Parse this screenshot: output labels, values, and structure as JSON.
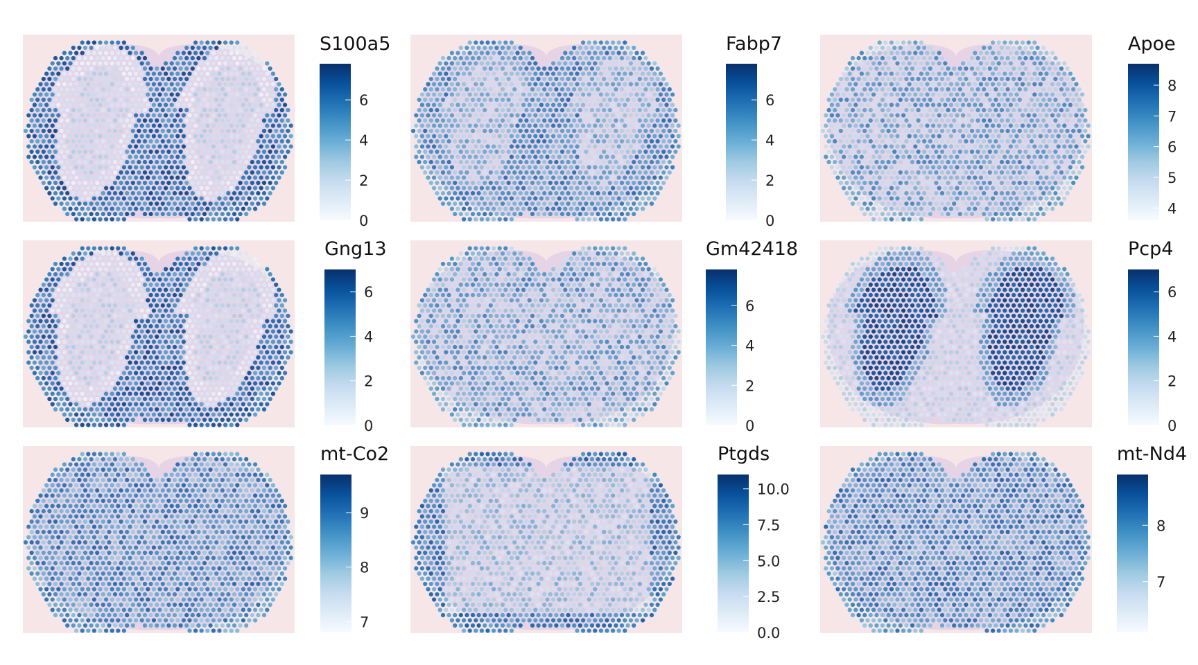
{
  "figure": {
    "background": "#ffffff",
    "tissue_background": "#f6e6e8",
    "colormap": "Blues"
  },
  "chart_data": [
    {
      "type": "spatial",
      "gene": "S100a5",
      "legend_title": "S100a5",
      "range": [
        0,
        7.8
      ],
      "ticks": [
        "0",
        "2",
        "4",
        "6"
      ],
      "tick_values": [
        0,
        2,
        4,
        6
      ],
      "pattern": "outer"
    },
    {
      "type": "spatial",
      "gene": "Fabp7",
      "legend_title": "Fabp7",
      "range": [
        0,
        7.8
      ],
      "ticks": [
        "0",
        "2",
        "4",
        "6"
      ],
      "tick_values": [
        0,
        2,
        4,
        6
      ],
      "pattern": "mixed-outer"
    },
    {
      "type": "spatial",
      "gene": "Apoe",
      "legend_title": "Apoe",
      "range": [
        3.6,
        8.7
      ],
      "ticks": [
        "4",
        "5",
        "6",
        "7",
        "8"
      ],
      "tick_values": [
        4,
        5,
        6,
        7,
        8
      ],
      "pattern": "mixed"
    },
    {
      "type": "spatial",
      "gene": "Gng13",
      "legend_title": "Gng13",
      "range": [
        0,
        7.0
      ],
      "ticks": [
        "0",
        "2",
        "4",
        "6"
      ],
      "tick_values": [
        0,
        2,
        4,
        6
      ],
      "pattern": "outer"
    },
    {
      "type": "spatial",
      "gene": "Gm42418",
      "legend_title": "Gm42418",
      "range": [
        0,
        7.8
      ],
      "ticks": [
        "0",
        "2",
        "4",
        "6"
      ],
      "tick_values": [
        0,
        2,
        4,
        6
      ],
      "pattern": "mixed"
    },
    {
      "type": "spatial",
      "gene": "Pcp4",
      "legend_title": "Pcp4",
      "range": [
        0,
        7.0
      ],
      "ticks": [
        "0",
        "2",
        "4",
        "6"
      ],
      "tick_values": [
        0,
        2,
        4,
        6
      ],
      "pattern": "inner"
    },
    {
      "type": "spatial",
      "gene": "mt-Co2",
      "legend_title": "mt-Co2",
      "range": [
        6.8,
        9.7
      ],
      "ticks": [
        "7",
        "8",
        "9"
      ],
      "tick_values": [
        7,
        8,
        9
      ],
      "pattern": "uniform-high"
    },
    {
      "type": "spatial",
      "gene": "Ptgds",
      "legend_title": "Ptgds",
      "range": [
        0,
        11.0
      ],
      "ticks": [
        "0.0",
        "2.5",
        "5.0",
        "7.5",
        "10.0"
      ],
      "tick_values": [
        0,
        2.5,
        5,
        7.5,
        10
      ],
      "pattern": "rim"
    },
    {
      "type": "spatial",
      "gene": "mt-Nd4",
      "legend_title": "mt-Nd4",
      "range": [
        6.1,
        8.9
      ],
      "ticks": [
        "7",
        "8"
      ],
      "tick_values": [
        7,
        8
      ],
      "pattern": "uniform-high"
    }
  ]
}
